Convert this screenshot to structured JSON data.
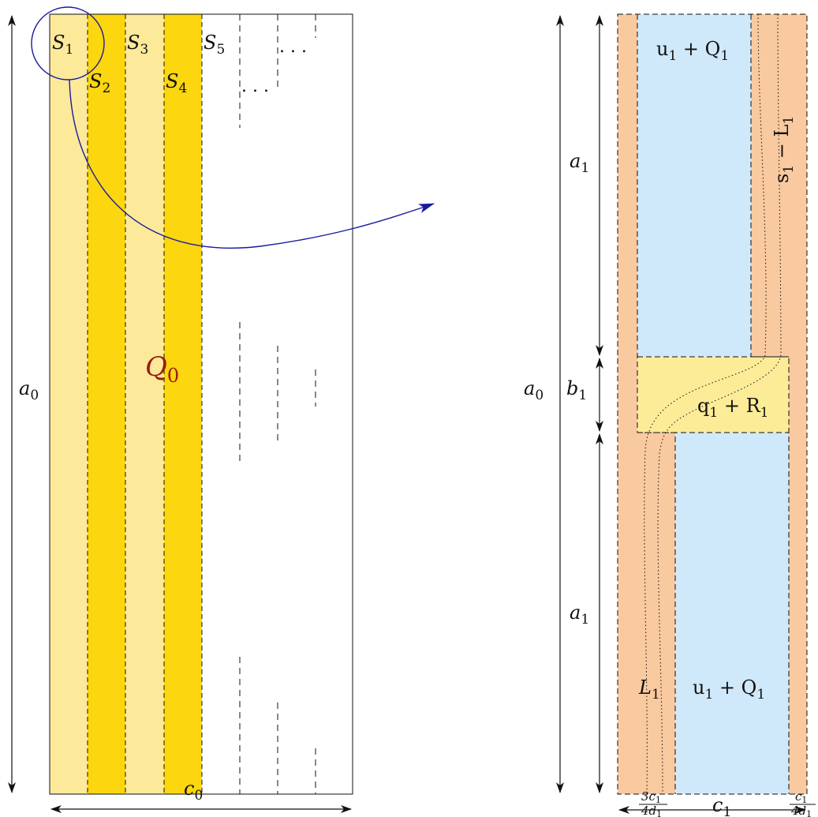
{
  "colors": {
    "pale_yellow": "#FCE99A",
    "gold": "#FCD60F",
    "peach": "#F9C99F",
    "light_blue": "#CFE9FA",
    "yellow_mid": "#FCEC98",
    "q0_label": "#9B1B12",
    "arrow": "#1A1A9E"
  },
  "left": {
    "strips": [
      {
        "id": "S1",
        "main": "S",
        "sub": "1"
      },
      {
        "id": "S2",
        "main": "S",
        "sub": "2"
      },
      {
        "id": "S3",
        "main": "S",
        "sub": "3"
      },
      {
        "id": "S4",
        "main": "S",
        "sub": "4"
      },
      {
        "id": "S5",
        "main": "S",
        "sub": "5"
      }
    ],
    "dots_top": ". . .",
    "dots_mid": ". . .",
    "q0": {
      "main": "Q",
      "sub": "0"
    },
    "height_label": {
      "main": "a",
      "sub": "0"
    },
    "width_label": {
      "main": "c",
      "sub": "0"
    }
  },
  "right": {
    "top_block": {
      "main": "u",
      "sub": "1",
      "rest": " + Q",
      "rest_sub": "1"
    },
    "sL": {
      "main": "s",
      "sub": "1",
      "rest": " − L",
      "rest_sub": "1"
    },
    "mid_block": {
      "main": "q",
      "sub": "1",
      "rest": " + R",
      "rest_sub": "1"
    },
    "L1": {
      "main": "L",
      "sub": "1"
    },
    "bottom_block": {
      "main": "u",
      "sub": "1",
      "rest": " + Q",
      "rest_sub": "1"
    },
    "a0": {
      "main": "a",
      "sub": "0"
    },
    "a1_top": {
      "main": "a",
      "sub": "1"
    },
    "b1": {
      "main": "b",
      "sub": "1"
    },
    "a1_bottom": {
      "main": "a",
      "sub": "1"
    },
    "frac_left": {
      "num": "3c",
      "num_sub": "1",
      "den": "4d",
      "den_sub": "1"
    },
    "c1": {
      "main": "c",
      "sub": "1"
    },
    "frac_right": {
      "num": "c",
      "num_sub": "1",
      "den": "4d",
      "den_sub": "1"
    }
  }
}
